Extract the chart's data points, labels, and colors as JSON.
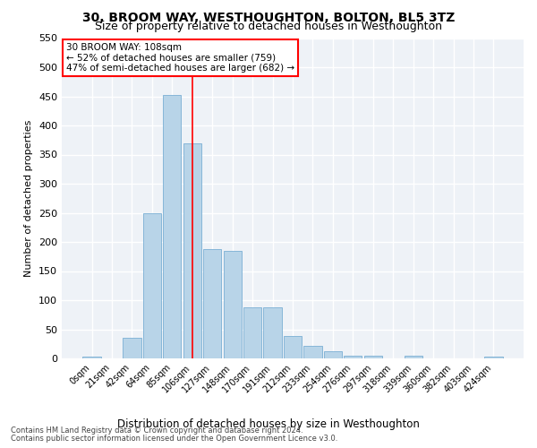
{
  "title": "30, BROOM WAY, WESTHOUGHTON, BOLTON, BL5 3TZ",
  "subtitle": "Size of property relative to detached houses in Westhoughton",
  "xlabel": "Distribution of detached houses by size in Westhoughton",
  "ylabel": "Number of detached properties",
  "bar_labels": [
    "0sqm",
    "21sqm",
    "42sqm",
    "64sqm",
    "85sqm",
    "106sqm",
    "127sqm",
    "148sqm",
    "170sqm",
    "191sqm",
    "212sqm",
    "233sqm",
    "254sqm",
    "276sqm",
    "297sqm",
    "318sqm",
    "339sqm",
    "360sqm",
    "382sqm",
    "403sqm",
    "424sqm"
  ],
  "bar_values": [
    3,
    0,
    35,
    250,
    452,
    370,
    187,
    185,
    88,
    88,
    38,
    21,
    12,
    5,
    5,
    0,
    5,
    0,
    0,
    0,
    3
  ],
  "bar_color": "#b8d4e8",
  "bar_edge_color": "#7aafd4",
  "property_line_index": 5,
  "annotation_line1": "30 BROOM WAY: 108sqm",
  "annotation_line2": "← 52% of detached houses are smaller (759)",
  "annotation_line3": "47% of semi-detached houses are larger (682) →",
  "ylim": [
    0,
    550
  ],
  "yticks": [
    0,
    50,
    100,
    150,
    200,
    250,
    300,
    350,
    400,
    450,
    500,
    550
  ],
  "footer1": "Contains HM Land Registry data © Crown copyright and database right 2024.",
  "footer2": "Contains public sector information licensed under the Open Government Licence v3.0.",
  "bg_color": "#eef2f7",
  "grid_color": "#ffffff",
  "title_fontsize": 10,
  "subtitle_fontsize": 9
}
